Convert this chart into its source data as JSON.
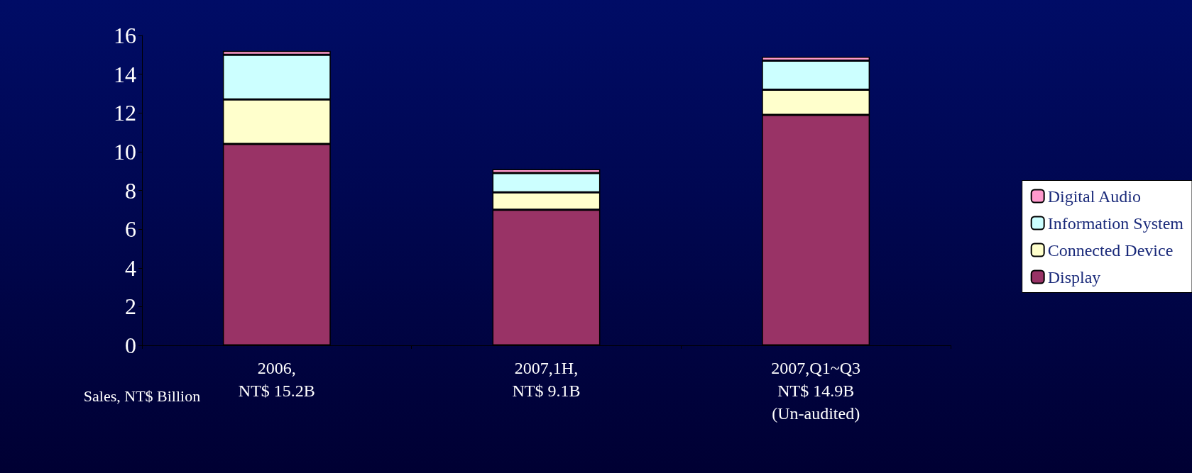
{
  "chart_data": {
    "type": "bar",
    "stacked": true,
    "categories": [
      "2006,\nNT$ 15.2B",
      "2007,1H,\nNT$ 9.1B",
      "2007,Q1~Q3\nNT$ 14.9B\n(Un-audited)"
    ],
    "series": [
      {
        "name": "Display",
        "color": "#993366",
        "values": [
          10.4,
          7.0,
          11.9
        ]
      },
      {
        "name": "Connected Device",
        "color": "#ffffcc",
        "values": [
          2.3,
          0.9,
          1.3
        ]
      },
      {
        "name": "Information System",
        "color": "#ccffff",
        "values": [
          2.3,
          1.0,
          1.5
        ]
      },
      {
        "name": "Digital Audio",
        "color": "#ff99cc",
        "values": [
          0.2,
          0.2,
          0.2
        ]
      }
    ],
    "ylabel": "Sales, NT$ Billion",
    "ylim": [
      0,
      16
    ],
    "yticks": [
      0,
      2,
      4,
      6,
      8,
      10,
      12,
      14,
      16
    ],
    "grid": false,
    "legend": "right"
  }
}
